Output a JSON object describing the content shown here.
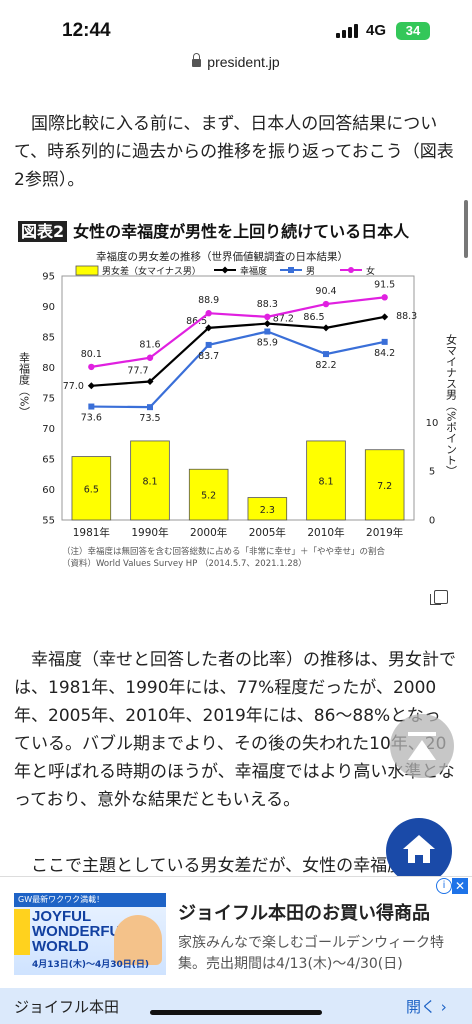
{
  "status": {
    "time": "12:44",
    "network": "4G",
    "battery": "34"
  },
  "url": "president.jp",
  "paragraphs": {
    "p1": "国際比較に入る前に、まず、日本人の回答結果について、時系列的に過去からの推移を振り返っておこう（図表2参照）。",
    "p2": "幸福度（幸せと回答した者の比率）の推移は、男女計では、1981年、1990年には、77%程度だったが、2000年、2005年、2010年、2019年には、86〜88%となっている。バブル期までより、その後の失われた10年、20年と呼ばれる時期のほうが、幸福度ではより高い水準となっており、意外な結果だともいえる。",
    "p3": "ここで主題としている男女差だが、女性の幸福度から"
  },
  "figure": {
    "badge": "図表2",
    "heading": "女性の幸福度が男性を上回り続けている日本人",
    "note1": "（注）幸福度は無回答を含む回答総数に占める「非常に幸せ」＋「やや幸せ」の割合",
    "note2": "（資料）World Values Survey HP （2014.5.7、2021.1.28）"
  },
  "chart_data": {
    "type": "bar+line",
    "title": "幸福度の男女差の推移（世界価値観調査の日本結果）",
    "ylabel": "幸福度（%）",
    "y2label": "女マイナス男（%ポイント）",
    "categories": [
      "1981年",
      "1990年",
      "2000年",
      "2005年",
      "2010年",
      "2019年"
    ],
    "ylim": [
      55,
      95
    ],
    "yticks": [
      55,
      60,
      65,
      70,
      75,
      80,
      85,
      90,
      95
    ],
    "y2lim": [
      0,
      25
    ],
    "y2ticks": [
      0,
      5,
      10
    ],
    "legend": [
      "男女差（女マイナス男）",
      "幸福度",
      "男",
      "女"
    ],
    "bars": {
      "name": "男女差（女マイナス男）",
      "color": "#ffff00",
      "values": [
        6.5,
        8.1,
        5.2,
        2.3,
        8.1,
        7.2
      ]
    },
    "series": [
      {
        "name": "幸福度",
        "color": "#000000",
        "values": [
          77.0,
          77.7,
          86.5,
          87.2,
          86.5,
          88.3
        ]
      },
      {
        "name": "男",
        "color": "#3a6fd8",
        "values": [
          73.6,
          73.5,
          83.7,
          85.9,
          82.2,
          84.2
        ]
      },
      {
        "name": "女",
        "color": "#e020e0",
        "values": [
          80.1,
          81.6,
          88.9,
          88.3,
          90.4,
          91.5
        ]
      }
    ]
  },
  "ad": {
    "banner_ribbon": "GW最新ワクワク満載！",
    "banner_big": "JOYFUL WONDERFUL WORLD",
    "banner_dates": "4月13日(木)〜4月30日(日)",
    "title": "ジョイフル本田のお買い得商品",
    "desc": "家族みんなで楽しむゴールデンウィーク特集。売出期間は4/13(木)〜4/30(日)",
    "sponsor": "ジョイフル本田",
    "cta": "開く ›"
  }
}
